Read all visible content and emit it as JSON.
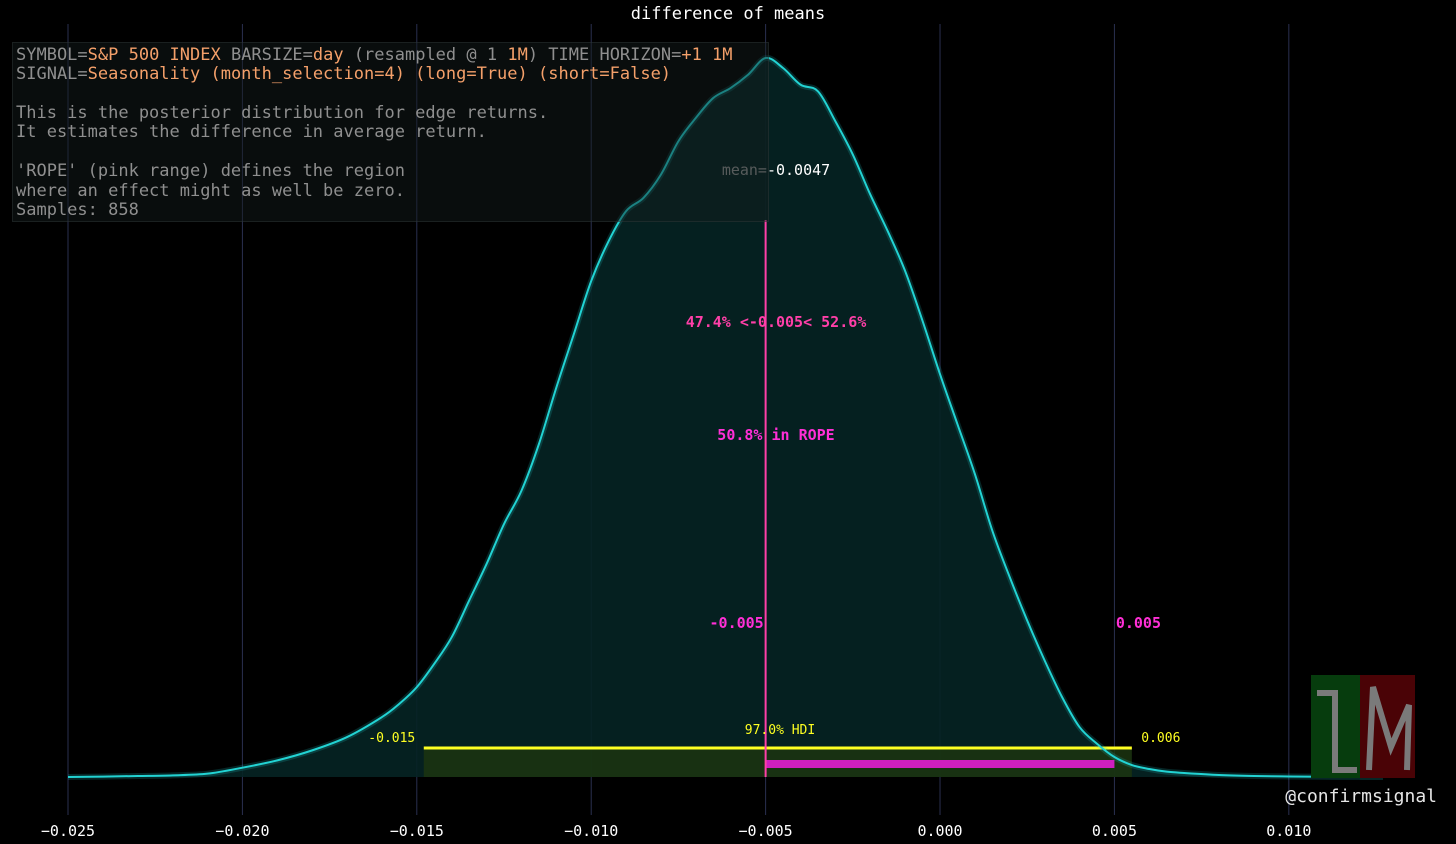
{
  "chart_data": {
    "type": "area",
    "title": "difference of means",
    "x": [
      -0.025,
      -0.024,
      -0.023,
      -0.022,
      -0.021,
      -0.02,
      -0.019,
      -0.018,
      -0.017,
      -0.016,
      -0.0155,
      -0.015,
      -0.0145,
      -0.014,
      -0.0135,
      -0.013,
      -0.0125,
      -0.012,
      -0.0115,
      -0.011,
      -0.0105,
      -0.01,
      -0.0095,
      -0.009,
      -0.0085,
      -0.008,
      -0.0075,
      -0.007,
      -0.0065,
      -0.006,
      -0.0055,
      -0.005,
      -0.0045,
      -0.004,
      -0.0035,
      -0.003,
      -0.0025,
      -0.002,
      -0.0015,
      -0.001,
      -0.0005,
      0.0,
      0.0005,
      0.001,
      0.0015,
      0.002,
      0.0025,
      0.003,
      0.0035,
      0.004,
      0.0045,
      0.005,
      0.0055,
      0.006,
      0.0065,
      0.007,
      0.008,
      0.009,
      0.01,
      0.011,
      0.012,
      0.0127
    ],
    "y": [
      0.0,
      0.0006,
      0.0015,
      0.0025,
      0.005,
      0.014,
      0.025,
      0.04,
      0.06,
      0.09,
      0.11,
      0.135,
      0.17,
      0.21,
      0.265,
      0.32,
      0.38,
      0.43,
      0.5,
      0.585,
      0.665,
      0.745,
      0.805,
      0.85,
      0.87,
      0.905,
      0.955,
      0.99,
      1.02,
      1.035,
      1.055,
      1.08,
      1.065,
      1.04,
      1.03,
      0.985,
      0.935,
      0.875,
      0.82,
      0.76,
      0.685,
      0.605,
      0.53,
      0.455,
      0.37,
      0.3,
      0.235,
      0.175,
      0.12,
      0.075,
      0.05,
      0.03,
      0.018,
      0.012,
      0.008,
      0.006,
      0.003,
      0.0015,
      0.0008,
      0.0003,
      0.0001,
      0.0
    ],
    "xlim": [
      -0.025,
      0.0127
    ],
    "x_ticks": [
      -0.025,
      -0.02,
      -0.015,
      -0.01,
      -0.005,
      0.0,
      0.005,
      0.01
    ],
    "x_tick_labels": [
      "−0.025",
      "−0.020",
      "−0.015",
      "−0.010",
      "−0.005",
      "0.000",
      "0.005",
      "0.010"
    ],
    "grid": "vertical",
    "mean": -0.0047,
    "mean_label_prefix": "mean=",
    "mean_label_value": "-0.0047",
    "hdi": {
      "low": -0.0148,
      "high": 0.0055,
      "label": "97.0% HDI",
      "low_label": "-0.015",
      "high_label": "0.006"
    },
    "rope": {
      "low": -0.005,
      "high": 0.005,
      "low_label": "-0.005",
      "high_label": "0.005",
      "label": "50.8% in ROPE"
    },
    "split_label": "47.4% <-0.005< 52.6%",
    "colors": {
      "curve": "#22d3d3",
      "fill": "#062424",
      "grid": "#2a3050",
      "rope_line": "#ff3fa8",
      "rope_text": "#ff2fd6",
      "rope_bar": "#d01fbf",
      "hdi": "#ffff22",
      "hdi_fill": "#1c3510",
      "text": "#ffffff"
    }
  },
  "info": {
    "symbol_key": "SYMBOL=",
    "symbol_val": "S&P 500 INDEX",
    "barsize_key": " BARSIZE=",
    "barsize_val": "day",
    "resample_key": " (resampled @ 1 ",
    "resample_val": "1M",
    "horizon_key": ") TIME HORIZON=",
    "horizon_val": "+1 1M",
    "signal_key": "SIGNAL=",
    "signal_val": "Seasonality (month_selection=4) (long=True) (short=False)",
    "line3": "This is the posterior distribution for edge returns.",
    "line4": "It estimates the difference in average return.",
    "line5": "'ROPE' (pink range) defines the region",
    "line6": "where an effect might as well be zero.",
    "line7": "Samples: 858"
  },
  "credit": "@confirmsignal"
}
